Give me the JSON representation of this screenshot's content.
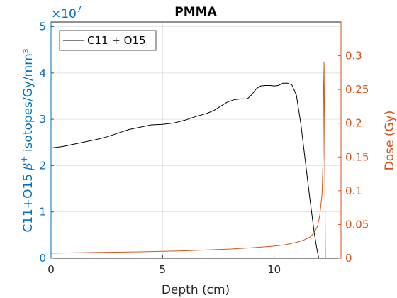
{
  "chart_data": {
    "type": "line",
    "title": "PMMA",
    "xlabel": "Depth (cm)",
    "ylabel_left_prefix": "C11+O15 ",
    "ylabel_left_symbol": "β",
    "ylabel_left_sup": "+",
    "ylabel_left_suffix": " isotopes/Gy/mm³",
    "ylabel_right": "Dose (Gy)",
    "left_exponent_base": "×10",
    "left_exponent_power": "7",
    "xlim": [
      0,
      13
    ],
    "ylim_left": [
      0,
      5.1
    ],
    "ylim_right": [
      0,
      0.35
    ],
    "x_ticks": [
      0,
      5,
      10
    ],
    "x_tick_labels": [
      "0",
      "5",
      "10"
    ],
    "y_left_ticks": [
      0,
      1,
      2,
      3,
      4,
      5
    ],
    "y_left_tick_labels": [
      "0",
      "1",
      "2",
      "3",
      "4",
      "5"
    ],
    "y_right_ticks": [
      0,
      0.05,
      0.1,
      0.15,
      0.2,
      0.25,
      0.3
    ],
    "y_right_tick_labels": [
      "0",
      "0.05",
      "0.1",
      "0.15",
      "0.2",
      "0.25",
      "0.3"
    ],
    "grid": true,
    "legend_position": "top-left",
    "colors": {
      "left_axis": "#0072BD",
      "right_axis": "#D95319",
      "isotope_line": "#000000",
      "dose_line": "#D95319",
      "grid": "#dfdfdf"
    },
    "series": [
      {
        "name": "C11 + O15",
        "axis": "left",
        "x": [
          0,
          0.5,
          1,
          1.5,
          2,
          2.5,
          3,
          3.5,
          4,
          4.5,
          5,
          5.5,
          6,
          6.5,
          7,
          7.3,
          7.6,
          7.9,
          8.2,
          8.5,
          8.8,
          9.0,
          9.2,
          9.4,
          9.6,
          9.8,
          10.0,
          10.2,
          10.4,
          10.6,
          10.8,
          11.0,
          11.2,
          11.4,
          11.6,
          11.8,
          11.9,
          12.0
        ],
        "values": [
          2.38,
          2.41,
          2.46,
          2.51,
          2.56,
          2.62,
          2.7,
          2.78,
          2.83,
          2.88,
          2.89,
          2.92,
          2.98,
          3.06,
          3.13,
          3.19,
          3.28,
          3.37,
          3.42,
          3.44,
          3.44,
          3.53,
          3.66,
          3.72,
          3.73,
          3.73,
          3.72,
          3.73,
          3.78,
          3.78,
          3.74,
          3.52,
          2.9,
          2.1,
          1.3,
          0.55,
          0.25,
          0.0
        ]
      },
      {
        "name": "",
        "axis": "right",
        "x": [
          0,
          2,
          4,
          6,
          8,
          9,
          10,
          10.5,
          11,
          11.3,
          11.6,
          11.8,
          11.95,
          12.05,
          12.15,
          12.2,
          12.22,
          12.24,
          12.26,
          12.3,
          12.35
        ],
        "values": [
          0.0075,
          0.0085,
          0.0095,
          0.011,
          0.0135,
          0.0155,
          0.018,
          0.02,
          0.0235,
          0.0265,
          0.031,
          0.038,
          0.048,
          0.064,
          0.095,
          0.15,
          0.25,
          0.29,
          0.2,
          0.0,
          0.0
        ]
      }
    ]
  }
}
